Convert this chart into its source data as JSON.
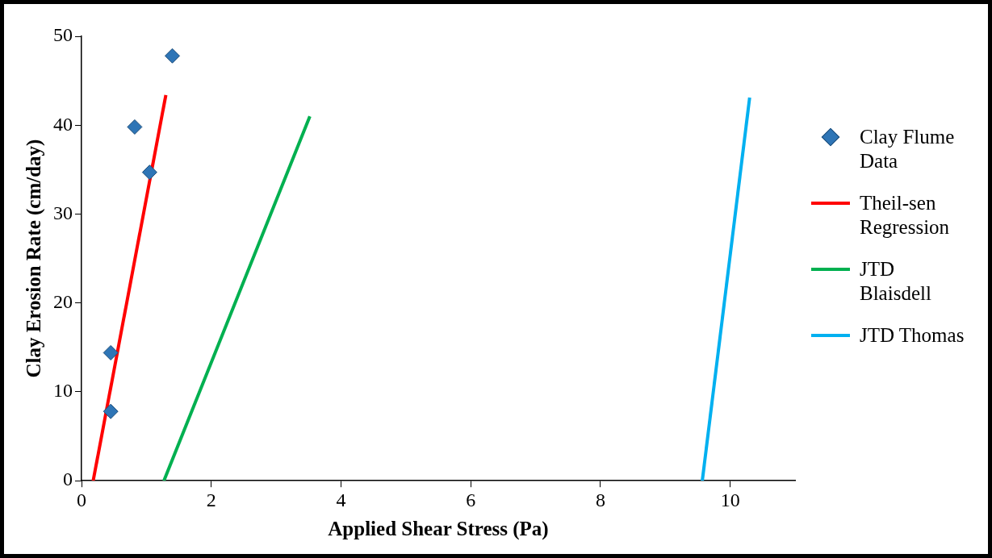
{
  "chart_data": {
    "type": "scatter",
    "xlabel": "Applied Shear Stress (Pa)",
    "ylabel": "Clay Erosion Rate (cm/day)",
    "xlim": [
      0,
      11
    ],
    "xticks": [
      0,
      2,
      4,
      6,
      8,
      10
    ],
    "ylim": [
      0,
      50
    ],
    "yticks": [
      0,
      10,
      20,
      30,
      40,
      50
    ],
    "grid": false,
    "legend": "right",
    "series": [
      {
        "name": "Clay Flume Data",
        "marker": "diamond",
        "color": "#2e75b6",
        "x": [
          1.4,
          0.82,
          1.05,
          0.45,
          0.45
        ],
        "values": [
          47.8,
          39.8,
          34.7,
          14.4,
          7.8
        ]
      },
      {
        "name": "Theil-sen Regression",
        "type": "line",
        "marker": "none",
        "color": "#ff0000",
        "x": [
          0.18,
          1.3
        ],
        "values": [
          0,
          43.4
        ]
      },
      {
        "name": "JTD Blaisdell",
        "type": "line",
        "marker": "none",
        "color": "#00b050",
        "x": [
          1.27,
          3.52
        ],
        "values": [
          0,
          41.0
        ]
      },
      {
        "name": "JTD Thomas",
        "type": "line",
        "marker": "none",
        "color": "#00b0f0",
        "x": [
          9.57,
          10.3
        ],
        "values": [
          0,
          43.1
        ]
      }
    ]
  }
}
